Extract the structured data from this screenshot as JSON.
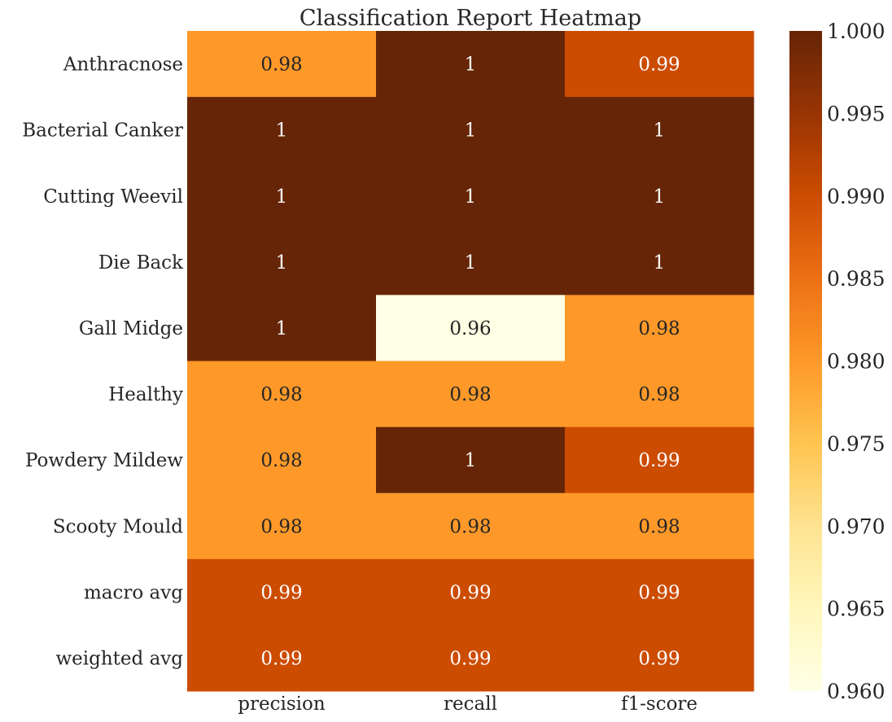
{
  "chart_data": {
    "type": "heatmap",
    "title": "Classification Report Heatmap",
    "columns": [
      "precision",
      "recall",
      "f1-score"
    ],
    "rows": [
      "Anthracnose",
      "Bacterial Canker",
      "Cutting Weevil",
      "Die Back",
      "Gall Midge",
      "Healthy",
      "Powdery Mildew",
      "Scooty Mould",
      "macro avg",
      "weighted avg"
    ],
    "values": [
      [
        0.98,
        1.0,
        0.99
      ],
      [
        1.0,
        1.0,
        1.0
      ],
      [
        1.0,
        1.0,
        1.0
      ],
      [
        1.0,
        1.0,
        1.0
      ],
      [
        1.0,
        0.96,
        0.98
      ],
      [
        0.98,
        0.98,
        0.98
      ],
      [
        0.98,
        1.0,
        0.99
      ],
      [
        0.98,
        0.98,
        0.98
      ],
      [
        0.99,
        0.99,
        0.99
      ],
      [
        0.99,
        0.99,
        0.99
      ]
    ],
    "cell_labels": [
      [
        "0.98",
        "1",
        "0.99"
      ],
      [
        "1",
        "1",
        "1"
      ],
      [
        "1",
        "1",
        "1"
      ],
      [
        "1",
        "1",
        "1"
      ],
      [
        "1",
        "0.96",
        "0.98"
      ],
      [
        "0.98",
        "0.98",
        "0.98"
      ],
      [
        "0.98",
        "1",
        "0.99"
      ],
      [
        "0.98",
        "0.98",
        "0.98"
      ],
      [
        "0.99",
        "0.99",
        "0.99"
      ],
      [
        "0.99",
        "0.99",
        "0.99"
      ]
    ],
    "colorbar": {
      "range": [
        0.96,
        1.0
      ],
      "ticks": [
        "1.000",
        "0.995",
        "0.990",
        "0.985",
        "0.980",
        "0.975",
        "0.970",
        "0.965",
        "0.960"
      ],
      "colormap": "YlOrBr",
      "colors": [
        "#ffffe5",
        "#fff7bc",
        "#fee391",
        "#fec44f",
        "#fe9929",
        "#ec7014",
        "#cc4c02",
        "#993404",
        "#662506"
      ]
    },
    "light_text_color": "#ffffff",
    "dark_text_color": "#262626"
  }
}
